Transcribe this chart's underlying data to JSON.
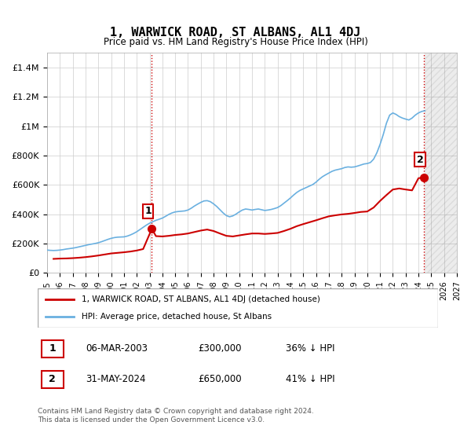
{
  "title": "1, WARWICK ROAD, ST ALBANS, AL1 4DJ",
  "subtitle": "Price paid vs. HM Land Registry's House Price Index (HPI)",
  "ylabel": "",
  "background_color": "#ffffff",
  "plot_bg_color": "#ffffff",
  "grid_color": "#cccccc",
  "hpi_color": "#6ab0e0",
  "price_color": "#cc0000",
  "annotation_color": "#cc0000",
  "sale1_x": 2003.18,
  "sale1_y": 300000,
  "sale1_label": "1",
  "sale2_x": 2024.42,
  "sale2_y": 650000,
  "sale2_label": "2",
  "ylim": [
    0,
    1500000
  ],
  "xlim_start": 1995,
  "xlim_end": 2027,
  "yticks": [
    0,
    200000,
    400000,
    600000,
    800000,
    1000000,
    1200000,
    1400000
  ],
  "ytick_labels": [
    "£0",
    "£200K",
    "£400K",
    "£600K",
    "£800K",
    "£1M",
    "£1.2M",
    "£1.4M"
  ],
  "xtick_years": [
    1995,
    1996,
    1997,
    1998,
    1999,
    2000,
    2001,
    2002,
    2003,
    2004,
    2005,
    2006,
    2007,
    2008,
    2009,
    2010,
    2011,
    2012,
    2013,
    2014,
    2015,
    2016,
    2017,
    2018,
    2019,
    2020,
    2021,
    2022,
    2023,
    2024,
    2025,
    2026,
    2027
  ],
  "legend_line1": "1, WARWICK ROAD, ST ALBANS, AL1 4DJ (detached house)",
  "legend_line2": "HPI: Average price, detached house, St Albans",
  "table_row1": [
    "1",
    "06-MAR-2003",
    "£300,000",
    "36% ↓ HPI"
  ],
  "table_row2": [
    "2",
    "31-MAY-2024",
    "£650,000",
    "41% ↓ HPI"
  ],
  "footnote": "Contains HM Land Registry data © Crown copyright and database right 2024.\nThis data is licensed under the Open Government Licence v3.0.",
  "hpi_data_x": [
    1995.0,
    1995.25,
    1995.5,
    1995.75,
    1996.0,
    1996.25,
    1996.5,
    1996.75,
    1997.0,
    1997.25,
    1997.5,
    1997.75,
    1998.0,
    1998.25,
    1998.5,
    1998.75,
    1999.0,
    1999.25,
    1999.5,
    1999.75,
    2000.0,
    2000.25,
    2000.5,
    2000.75,
    2001.0,
    2001.25,
    2001.5,
    2001.75,
    2002.0,
    2002.25,
    2002.5,
    2002.75,
    2003.0,
    2003.25,
    2003.5,
    2003.75,
    2004.0,
    2004.25,
    2004.5,
    2004.75,
    2005.0,
    2005.25,
    2005.5,
    2005.75,
    2006.0,
    2006.25,
    2006.5,
    2006.75,
    2007.0,
    2007.25,
    2007.5,
    2007.75,
    2008.0,
    2008.25,
    2008.5,
    2008.75,
    2009.0,
    2009.25,
    2009.5,
    2009.75,
    2010.0,
    2010.25,
    2010.5,
    2010.75,
    2011.0,
    2011.25,
    2011.5,
    2011.75,
    2012.0,
    2012.25,
    2012.5,
    2012.75,
    2013.0,
    2013.25,
    2013.5,
    2013.75,
    2014.0,
    2014.25,
    2014.5,
    2014.75,
    2015.0,
    2015.25,
    2015.5,
    2015.75,
    2016.0,
    2016.25,
    2016.5,
    2016.75,
    2017.0,
    2017.25,
    2017.5,
    2017.75,
    2018.0,
    2018.25,
    2018.5,
    2018.75,
    2019.0,
    2019.25,
    2019.5,
    2019.75,
    2020.0,
    2020.25,
    2020.5,
    2020.75,
    2021.0,
    2021.25,
    2021.5,
    2021.75,
    2022.0,
    2022.25,
    2022.5,
    2022.75,
    2023.0,
    2023.25,
    2023.5,
    2023.75,
    2024.0,
    2024.25,
    2024.5
  ],
  "hpi_data_y": [
    155000,
    153000,
    152000,
    153000,
    155000,
    158000,
    162000,
    165000,
    168000,
    172000,
    177000,
    182000,
    187000,
    192000,
    196000,
    200000,
    205000,
    212000,
    220000,
    228000,
    235000,
    240000,
    243000,
    244000,
    245000,
    250000,
    258000,
    268000,
    280000,
    295000,
    310000,
    325000,
    338000,
    348000,
    358000,
    365000,
    373000,
    385000,
    398000,
    408000,
    415000,
    418000,
    420000,
    422000,
    428000,
    440000,
    455000,
    468000,
    480000,
    490000,
    492000,
    485000,
    470000,
    452000,
    430000,
    408000,
    390000,
    382000,
    388000,
    400000,
    415000,
    428000,
    435000,
    432000,
    428000,
    432000,
    435000,
    430000,
    425000,
    428000,
    432000,
    438000,
    445000,
    458000,
    475000,
    492000,
    510000,
    530000,
    548000,
    562000,
    572000,
    582000,
    592000,
    602000,
    618000,
    638000,
    655000,
    668000,
    680000,
    692000,
    700000,
    705000,
    710000,
    718000,
    722000,
    720000,
    722000,
    728000,
    735000,
    742000,
    745000,
    752000,
    775000,
    818000,
    875000,
    942000,
    1020000,
    1075000,
    1090000,
    1080000,
    1065000,
    1055000,
    1048000,
    1042000,
    1055000,
    1075000,
    1090000,
    1100000,
    1105000
  ],
  "price_data_x": [
    1995.5,
    1996.0,
    1996.5,
    1997.0,
    1997.5,
    1998.0,
    1998.5,
    1999.0,
    1999.5,
    2000.0,
    2000.5,
    2001.0,
    2001.5,
    2002.0,
    2002.5,
    2003.18,
    2003.5,
    2004.0,
    2004.5,
    2005.0,
    2005.5,
    2006.0,
    2006.5,
    2007.0,
    2007.5,
    2008.0,
    2008.5,
    2009.0,
    2009.5,
    2010.0,
    2010.5,
    2011.0,
    2011.5,
    2012.0,
    2012.5,
    2013.0,
    2013.5,
    2014.0,
    2014.5,
    2015.0,
    2015.5,
    2016.0,
    2016.5,
    2017.0,
    2017.5,
    2018.0,
    2018.5,
    2019.0,
    2019.5,
    2020.0,
    2020.5,
    2021.0,
    2021.5,
    2022.0,
    2022.5,
    2023.0,
    2023.5,
    2024.0,
    2024.42
  ],
  "price_data_y": [
    95000,
    97000,
    98000,
    100000,
    103000,
    107000,
    112000,
    118000,
    125000,
    132000,
    136000,
    140000,
    145000,
    152000,
    162000,
    300000,
    250000,
    248000,
    252000,
    258000,
    262000,
    268000,
    278000,
    288000,
    295000,
    285000,
    268000,
    252000,
    248000,
    255000,
    262000,
    268000,
    268000,
    265000,
    268000,
    272000,
    285000,
    300000,
    318000,
    332000,
    345000,
    358000,
    372000,
    385000,
    392000,
    398000,
    402000,
    408000,
    415000,
    418000,
    445000,
    490000,
    530000,
    568000,
    575000,
    568000,
    562000,
    645000,
    650000
  ],
  "vline1_x": 2003.18,
  "vline2_x": 2024.42,
  "vline_color": "#cc0000",
  "vline_style": ":",
  "hatch_color": "#dddddd"
}
